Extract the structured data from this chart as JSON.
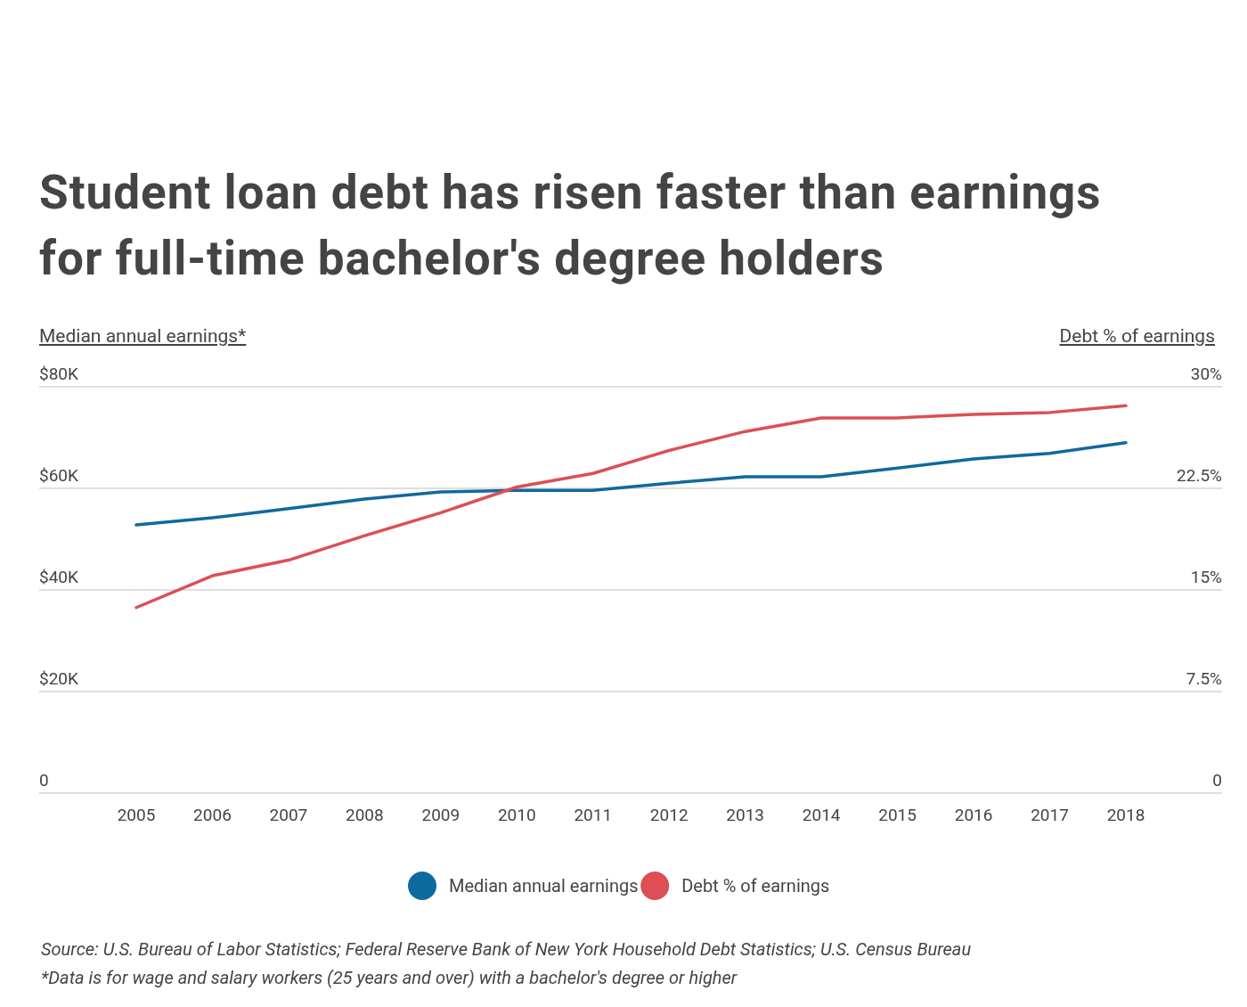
{
  "chart_data": {
    "type": "line",
    "title": "Student loan debt has risen faster than earnings for full-time bachelor's degree holders",
    "ylabel": "Median annual earnings*",
    "y2label": "Debt % of earnings",
    "categories": [
      "2005",
      "2006",
      "2007",
      "2008",
      "2009",
      "2010",
      "2011",
      "2012",
      "2013",
      "2014",
      "2015",
      "2016",
      "2017",
      "2018"
    ],
    "series": [
      {
        "name": "Median annual earnings",
        "color": "#0e6a9e",
        "values": [
          52800,
          54200,
          56000,
          57900,
          59300,
          59600,
          59600,
          61000,
          62300,
          62300,
          64000,
          65800,
          66900,
          69000
        ]
      },
      {
        "name": "Debt % of earnings",
        "color": "#dc4f55",
        "axis": "y2",
        "values": [
          13.7,
          16.05,
          17.2,
          19.0,
          20.7,
          22.6,
          23.6,
          25.3,
          26.7,
          27.7,
          27.7,
          27.96,
          28.1,
          28.6
        ]
      }
    ],
    "ylim": [
      0,
      80000
    ],
    "yticks": [
      {
        "value": 0,
        "label": "0"
      },
      {
        "value": 20000,
        "label": "$20K"
      },
      {
        "value": 40000,
        "label": "$40K"
      },
      {
        "value": 60000,
        "label": "$60K"
      },
      {
        "value": 80000,
        "label": "$80K"
      }
    ],
    "y2lim": [
      0,
      30
    ],
    "y2ticks": [
      {
        "value": 0,
        "label": "0"
      },
      {
        "value": 7.5,
        "label": "7.5%"
      },
      {
        "value": 15,
        "label": "15%"
      },
      {
        "value": 22.5,
        "label": "22.5%"
      },
      {
        "value": 30,
        "label": "30%"
      }
    ],
    "grid": "y",
    "legend": "bottom",
    "marker": "none",
    "line_style": "solid",
    "annotations": [
      "Source: U.S. Bureau of Labor Statistics; Federal Reserve Bank of New York Household Debt Statistics; U.S. Census Bureau",
      "*Data is for wage and salary workers (25 years and over) with a bachelor's degree or higher"
    ]
  }
}
